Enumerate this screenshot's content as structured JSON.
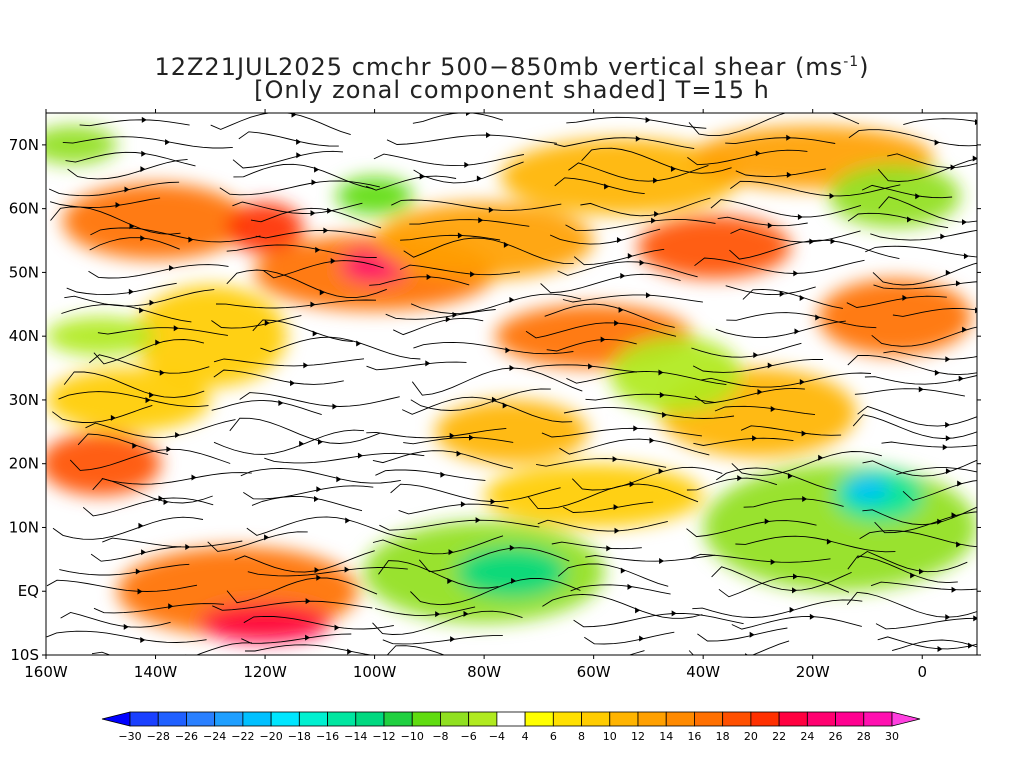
{
  "title": {
    "line1_prefix": "12Z21JUL2025 cmchr 500−850mb vertical shear (ms",
    "line1_sup": "-1",
    "line1_suffix": ")",
    "line2": "[Only zonal component shaded] T=15 h"
  },
  "map": {
    "lon_range": [
      -160,
      10
    ],
    "lat_range": [
      -10,
      75
    ],
    "lat_labels": [
      {
        "lat": 70,
        "text": "70N"
      },
      {
        "lat": 60,
        "text": "60N"
      },
      {
        "lat": 50,
        "text": "50N"
      },
      {
        "lat": 40,
        "text": "40N"
      },
      {
        "lat": 30,
        "text": "30N"
      },
      {
        "lat": 20,
        "text": "20N"
      },
      {
        "lat": 10,
        "text": "10N"
      },
      {
        "lat": 0,
        "text": "EQ"
      },
      {
        "lat": -10,
        "text": "10S"
      }
    ],
    "lon_labels": [
      {
        "lon": -160,
        "text": "160W"
      },
      {
        "lon": -140,
        "text": "140W"
      },
      {
        "lon": -120,
        "text": "120W"
      },
      {
        "lon": -100,
        "text": "100W"
      },
      {
        "lon": -80,
        "text": "80W"
      },
      {
        "lon": -60,
        "text": "60W"
      },
      {
        "lon": -40,
        "text": "40W"
      },
      {
        "lon": -20,
        "text": "20W"
      },
      {
        "lon": 0,
        "text": "0"
      }
    ],
    "shading_blobs": [
      {
        "lon": -140,
        "lat": 58,
        "rx": 17,
        "ry": 6,
        "value": 16
      },
      {
        "lon": -120,
        "lat": 57,
        "rx": 7,
        "ry": 4,
        "value": 20
      },
      {
        "lon": -100,
        "lat": 50,
        "rx": 22,
        "ry": 6,
        "value": 16
      },
      {
        "lon": -100,
        "lat": 51,
        "rx": 6,
        "ry": 2.5,
        "value": 24
      },
      {
        "lon": -60,
        "lat": 40,
        "rx": 18,
        "ry": 5,
        "value": 16
      },
      {
        "lon": -38,
        "lat": 54,
        "rx": 14,
        "ry": 5,
        "value": 18
      },
      {
        "lon": -5,
        "lat": 43,
        "rx": 14,
        "ry": 6,
        "value": 16
      },
      {
        "lon": -150,
        "lat": 20,
        "rx": 11,
        "ry": 5,
        "value": 18
      },
      {
        "lon": -125,
        "lat": 0,
        "rx": 22,
        "ry": 7,
        "value": 16
      },
      {
        "lon": -120,
        "lat": -5,
        "rx": 12,
        "ry": 3,
        "value": 22
      },
      {
        "lon": -80,
        "lat": 55,
        "rx": 20,
        "ry": 6,
        "value": 12
      },
      {
        "lon": -130,
        "lat": 40,
        "rx": 14,
        "ry": 8,
        "value": 8
      },
      {
        "lon": -55,
        "lat": 65,
        "rx": 22,
        "ry": 6,
        "value": 10
      },
      {
        "lon": -20,
        "lat": 68,
        "rx": 22,
        "ry": 5,
        "value": 12
      },
      {
        "lon": -30,
        "lat": 28,
        "rx": 18,
        "ry": 7,
        "value": 10
      },
      {
        "lon": -75,
        "lat": 25,
        "rx": 14,
        "ry": 5,
        "value": 10
      },
      {
        "lon": -145,
        "lat": 30,
        "rx": 15,
        "ry": 5,
        "value": 8
      },
      {
        "lon": -60,
        "lat": 15,
        "rx": 20,
        "ry": 5,
        "value": 8
      },
      {
        "lon": -80,
        "lat": 3,
        "rx": 22,
        "ry": 8,
        "value": -8
      },
      {
        "lon": -75,
        "lat": 3,
        "rx": 10,
        "ry": 4,
        "value": -14
      },
      {
        "lon": -15,
        "lat": 10,
        "rx": 25,
        "ry": 10,
        "value": -8
      },
      {
        "lon": -8,
        "lat": 15,
        "rx": 8,
        "ry": 4,
        "value": -16
      },
      {
        "lon": -10,
        "lat": 16,
        "rx": 4,
        "ry": 2,
        "value": -22
      },
      {
        "lon": -45,
        "lat": 34,
        "rx": 12,
        "ry": 6,
        "value": -6
      },
      {
        "lon": -5,
        "lat": 62,
        "rx": 12,
        "ry": 5,
        "value": -8
      },
      {
        "lon": -100,
        "lat": 62,
        "rx": 7,
        "ry": 3,
        "value": -10
      },
      {
        "lon": -150,
        "lat": 40,
        "rx": 10,
        "ry": 3,
        "value": -6
      },
      {
        "lon": -155,
        "lat": 70,
        "rx": 8,
        "ry": 3,
        "value": -8
      }
    ]
  },
  "colorbar": {
    "levels": [
      -30,
      -28,
      -26,
      -24,
      -22,
      -20,
      -18,
      -16,
      -14,
      -12,
      -10,
      -8,
      -6,
      -4,
      4,
      6,
      8,
      10,
      12,
      14,
      16,
      18,
      20,
      22,
      24,
      26,
      28,
      30
    ],
    "colors": [
      "#0000ff",
      "#1a40ff",
      "#2060ff",
      "#2a80ff",
      "#1f9fff",
      "#00c0ff",
      "#00e6ff",
      "#00f0d0",
      "#00e6a0",
      "#00d980",
      "#20d040",
      "#60dc10",
      "#90e020",
      "#b0ea20",
      "#ffffff",
      "#ffff00",
      "#ffe000",
      "#ffcc00",
      "#ffb400",
      "#ffa000",
      "#ff8a00",
      "#ff7000",
      "#ff5000",
      "#ff3000",
      "#ff0040",
      "#ff0070",
      "#ff0090",
      "#ff10b0",
      "#ff40e0"
    ],
    "labels": [
      "−30",
      "−28",
      "−26",
      "−24",
      "−22",
      "−20",
      "−18",
      "−16",
      "−14",
      "−12",
      "−10",
      "−8",
      "−6",
      "−4",
      "4",
      "6",
      "8",
      "10",
      "12",
      "14",
      "16",
      "18",
      "20",
      "22",
      "24",
      "26",
      "28",
      "30"
    ]
  }
}
